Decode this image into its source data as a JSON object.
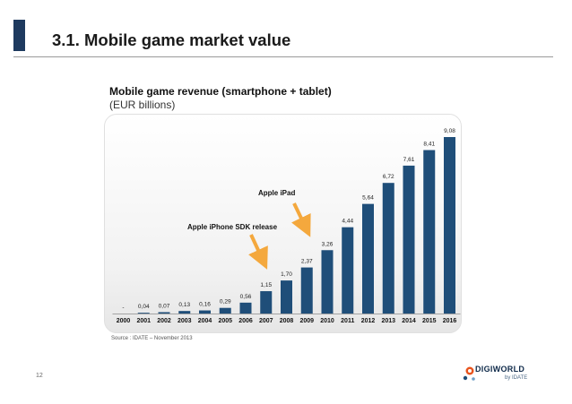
{
  "slide": {
    "title": "3.1. Mobile game market value",
    "page_number": "12",
    "source": "Source : IDATE – November 2013"
  },
  "logo": {
    "name": "DIGIWORLD",
    "sub": "by IDATE"
  },
  "colors": {
    "bar": "#1f4e79",
    "accent_bar": "#1e3a5f",
    "arrow": "#f4a83d"
  },
  "chart_data": {
    "type": "bar",
    "title": "Mobile game revenue (smartphone + tablet)",
    "subtitle": "(EUR billions)",
    "xlabel": "",
    "ylabel": "",
    "ylim": [
      0,
      9.08
    ],
    "categories": [
      "2000",
      "2001",
      "2002",
      "2003",
      "2004",
      "2005",
      "2006",
      "2007",
      "2008",
      "2009",
      "2010",
      "2011",
      "2012",
      "2013",
      "2014",
      "2015",
      "2016"
    ],
    "values": [
      0,
      0.04,
      0.07,
      0.13,
      0.16,
      0.29,
      0.56,
      1.15,
      1.7,
      2.37,
      3.26,
      4.44,
      5.64,
      6.72,
      7.61,
      8.41,
      9.08
    ],
    "labels": [
      "-",
      "0,04",
      "0,07",
      "0,13",
      "0,16",
      "0,29",
      "0,56",
      "1,15",
      "1,70",
      "2,37",
      "3,26",
      "4,44",
      "5,64",
      "6,72",
      "7,61",
      "8,41",
      "9,08"
    ],
    "annotations": [
      {
        "text": "Apple iPhone SDK release",
        "category": "2007"
      },
      {
        "text": "Apple iPad",
        "category": "2009"
      }
    ]
  }
}
